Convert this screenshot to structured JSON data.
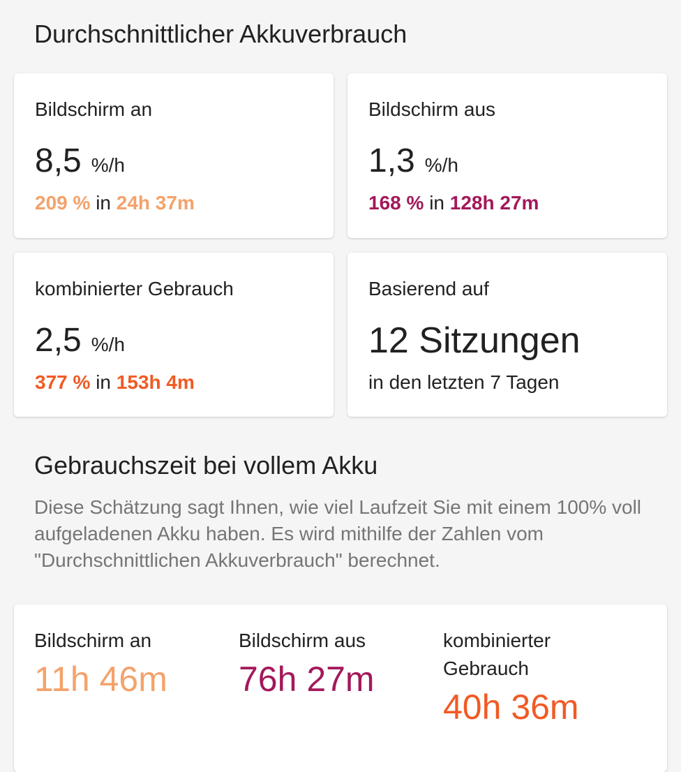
{
  "section1": {
    "title": "Durchschnittlicher Akkuverbrauch",
    "cards": [
      {
        "label": "Bildschirm an",
        "value": "8,5",
        "unit": "%/h",
        "percent": "209 %",
        "in": "in",
        "duration": "24h 37m",
        "color": "#F4A26A"
      },
      {
        "label": "Bildschirm aus",
        "value": "1,3",
        "unit": "%/h",
        "percent": "168 %",
        "in": "in",
        "duration": "128h 27m",
        "color": "#A3185A"
      },
      {
        "label": "kombinierter Gebrauch",
        "value": "2,5",
        "unit": "%/h",
        "percent": "377 %",
        "in": "in",
        "duration": "153h 4m",
        "color": "#F15A24"
      }
    ],
    "sessions": {
      "label": "Basierend auf",
      "value": "12 Sitzungen",
      "sub": "in den letzten 7 Tagen"
    }
  },
  "section2": {
    "title": "Gebrauchszeit bei vollem Akku",
    "description": "Diese Schätzung sagt Ihnen, wie viel Laufzeit Sie mit einem 100% voll aufgeladenen Akku haben. Es wird mithilfe der Zahlen vom \"Durchschnittlichen Akkuverbrauch\" berechnet.",
    "items": [
      {
        "label": "Bildschirm an",
        "value": "11h 46m",
        "color": "#F4A26A"
      },
      {
        "label": "Bildschirm aus",
        "value": "76h 27m",
        "color": "#A3185A"
      },
      {
        "label": "kombinierter Gebrauch",
        "value": "40h 36m",
        "color": "#F15A24"
      }
    ]
  }
}
